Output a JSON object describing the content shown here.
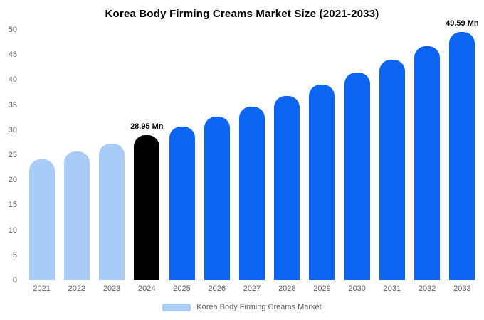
{
  "title": "Korea Body Firming Creams Market Size (2021-2033)",
  "legend": {
    "label": "Korea Body Firming Creams Market"
  },
  "colors": {
    "historical": "#a9cbf7",
    "highlight": "#000000",
    "forecast": "#0c64f2",
    "axis_text": "#5f5f5f",
    "title_text": "#000000",
    "annotation_text": "#000000",
    "background": "#ffffff"
  },
  "chart_data": {
    "type": "bar",
    "title": "Korea Body Firming Creams Market Size (2021-2033)",
    "xlabel": "",
    "ylabel": "",
    "unit": "Mn",
    "categories": [
      "2021",
      "2022",
      "2023",
      "2024",
      "2025",
      "2026",
      "2027",
      "2028",
      "2029",
      "2030",
      "2031",
      "2032",
      "2033"
    ],
    "values": [
      24.19,
      25.68,
      27.27,
      28.95,
      30.74,
      32.63,
      34.65,
      36.78,
      39.05,
      41.46,
      44.02,
      46.73,
      49.59
    ],
    "bar_roles": [
      "historical",
      "historical",
      "historical",
      "highlight",
      "forecast",
      "forecast",
      "forecast",
      "forecast",
      "forecast",
      "forecast",
      "forecast",
      "forecast",
      "forecast"
    ],
    "ylim": [
      0,
      50
    ],
    "yticks": [
      0,
      5,
      10,
      15,
      20,
      25,
      30,
      35,
      40,
      45,
      50
    ],
    "grid": false,
    "legend_position": "bottom",
    "legend_entries": [
      "Korea Body Firming Creams Market"
    ],
    "annotations": [
      {
        "category": "2024",
        "text": "28.95 Mn"
      },
      {
        "category": "2033",
        "text": "49.59 Mn"
      }
    ]
  }
}
